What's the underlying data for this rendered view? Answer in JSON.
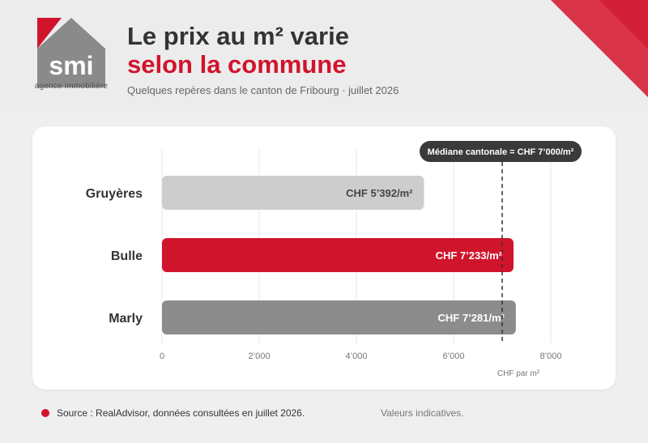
{
  "logo": {
    "wordmark": "smi",
    "tagline": "agence immobilière"
  },
  "header": {
    "title_line1": "Le prix au m² varie",
    "title_line2": "selon la commune",
    "subtitle": "Quelques repères dans le canton de Fribourg · juillet 2026"
  },
  "chart_data": {
    "type": "bar",
    "orientation": "horizontal",
    "categories": [
      "Gruyères",
      "Bulle",
      "Marly"
    ],
    "values": [
      5392,
      7233,
      7281
    ],
    "value_labels": [
      "CHF 5’392/m²",
      "CHF 7’233/m²",
      "CHF 7’281/m²"
    ],
    "bar_colors": [
      "#cdcdcd",
      "#d0142c",
      "#8c8c8c"
    ],
    "xlim": [
      0,
      8000
    ],
    "xticks": [
      0,
      2000,
      4000,
      6000,
      8000
    ],
    "xtick_labels": [
      "0",
      "2’000",
      "4’000",
      "6’000",
      "8’000"
    ],
    "xlabel": "CHF par m²",
    "grid": true,
    "reference_line": {
      "value": 7000,
      "label": "Médiane cantonale = CHF 7’000/m²"
    }
  },
  "footer": {
    "source": "Source : RealAdvisor, données consultées en juillet 2026.",
    "note": "Valeurs indicatives."
  },
  "colors": {
    "brand_red": "#d0142c",
    "logo_gray": "#8a8a8a"
  }
}
